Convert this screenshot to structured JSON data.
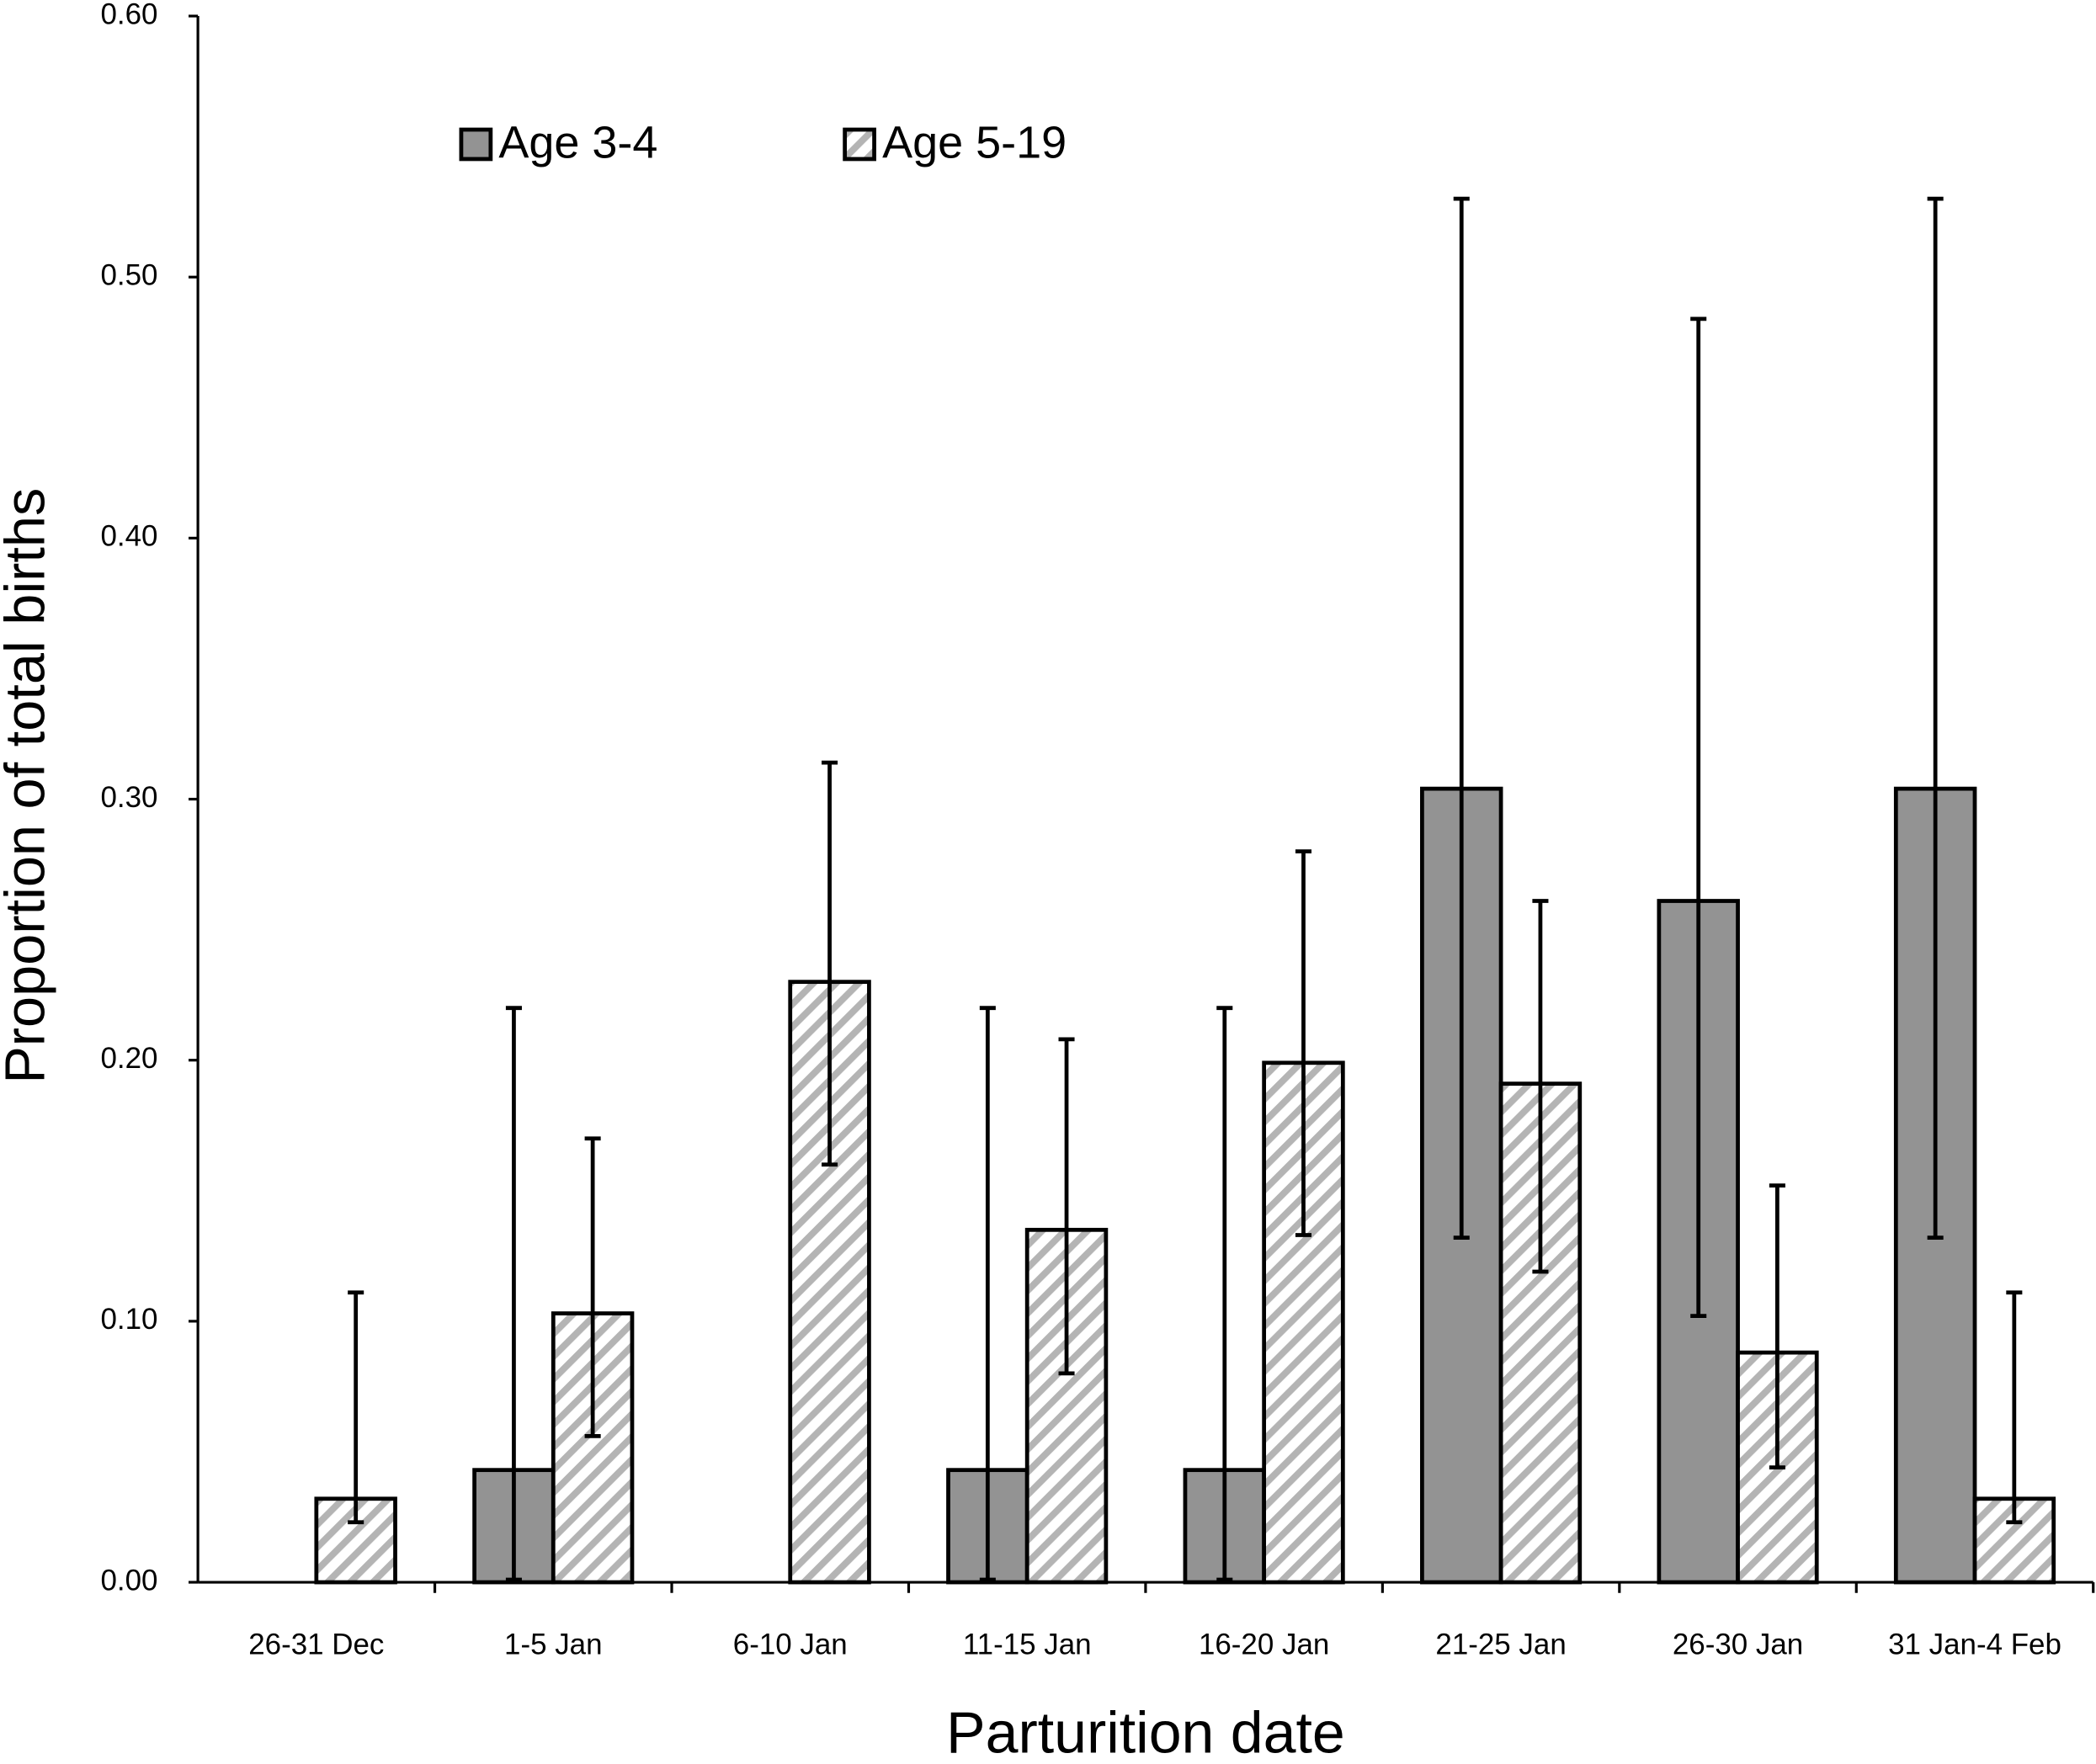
{
  "chart_data": {
    "type": "bar",
    "y_label": "Proportion of total births",
    "x_label": "Parturition date",
    "categories": [
      "26-31 Dec",
      "1-5 Jan",
      "6-10 Jan",
      "11-15 Jan",
      "16-20 Jan",
      "21-25 Jan",
      "26-30 Jan",
      "31 Jan-4 Feb"
    ],
    "series": [
      {
        "name": "Age 3-4",
        "color": "#939393",
        "pattern": "solid",
        "values": [
          0,
          0.043,
          0,
          0.043,
          0.043,
          0.304,
          0.261,
          0.304
        ],
        "error_low": [
          null,
          0.001,
          null,
          0.001,
          0.001,
          0.132,
          0.102,
          0.132
        ],
        "error_high": [
          null,
          0.22,
          null,
          0.22,
          0.22,
          0.53,
          0.484,
          0.53
        ]
      },
      {
        "name": "Age 5-19",
        "color": "#b4b4b4",
        "pattern": "hatch",
        "values": [
          0.032,
          0.103,
          0.23,
          0.135,
          0.199,
          0.191,
          0.088,
          0.032
        ],
        "error_low": [
          0.023,
          0.056,
          0.16,
          0.08,
          0.133,
          0.119,
          0.044,
          0.023
        ],
        "error_high": [
          0.111,
          0.17,
          0.314,
          0.208,
          0.28,
          0.261,
          0.152,
          0.111
        ]
      }
    ],
    "ylim": [
      0,
      0.6
    ],
    "yticks": [
      {
        "value": 0,
        "label": "0.00"
      },
      {
        "value": 0.1,
        "label": "0.10"
      },
      {
        "value": 0.2,
        "label": "0.20"
      },
      {
        "value": 0.3,
        "label": "0.30"
      },
      {
        "value": 0.4,
        "label": "0.40"
      },
      {
        "value": 0.5,
        "label": "0.50"
      },
      {
        "value": 0.6,
        "label": "0.60"
      }
    ],
    "grid": false
  }
}
